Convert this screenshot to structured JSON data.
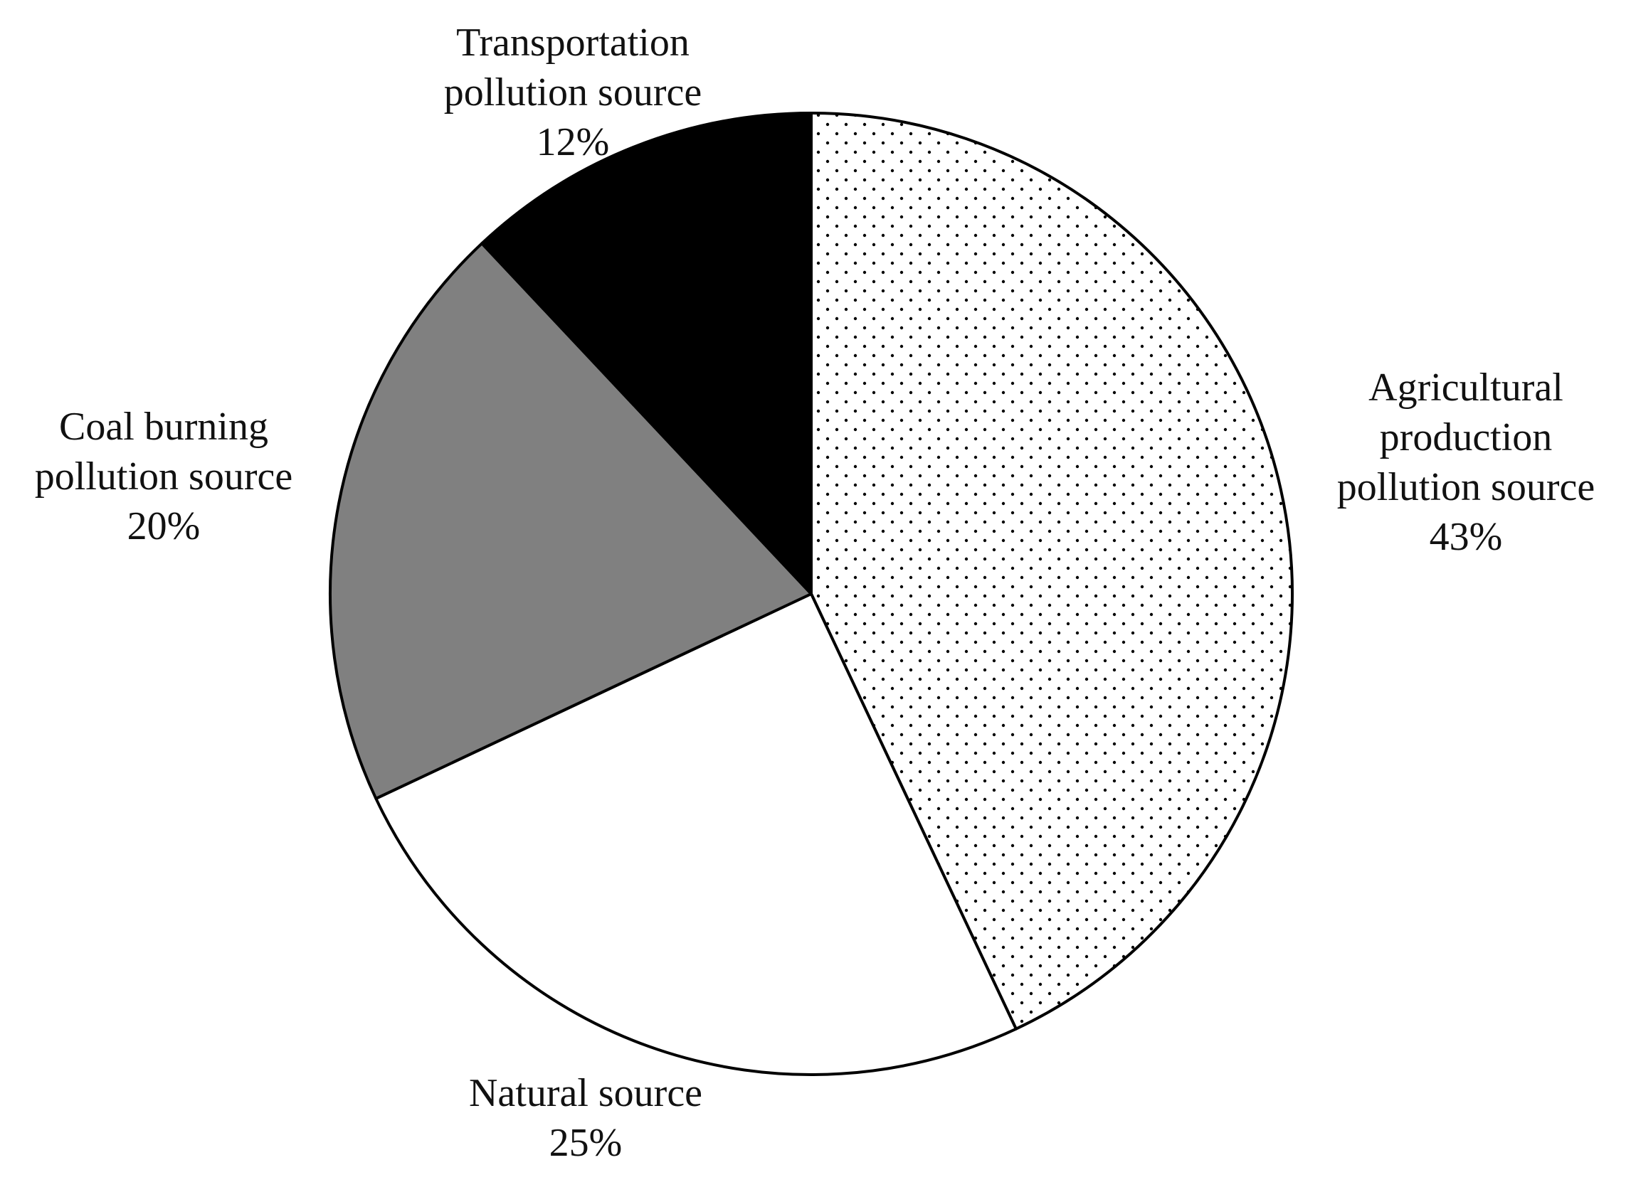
{
  "chart_data": {
    "type": "pie",
    "title": "",
    "start_angle_deg": 0,
    "direction": "clockwise",
    "slices": [
      {
        "name": "Agricultural production pollution source",
        "label_lines": [
          "Agricultural",
          "production",
          "pollution source"
        ],
        "percent_label": "43%",
        "value": 43,
        "fill": "dots"
      },
      {
        "name": "Natural source",
        "label_lines": [
          "Natural source"
        ],
        "percent_label": "25%",
        "value": 25,
        "fill": "#ffffff"
      },
      {
        "name": "Coal burning pollution source",
        "label_lines": [
          "Coal burning",
          "pollution source"
        ],
        "percent_label": "20%",
        "value": 20,
        "fill": "#808080"
      },
      {
        "name": "Transportation pollution source",
        "label_lines": [
          "Transportation",
          "pollution source"
        ],
        "percent_label": "12%",
        "value": 12,
        "fill": "#000000"
      }
    ],
    "colors": {
      "outline": "#000000",
      "dot": "#000000",
      "background": "#ffffff"
    }
  }
}
